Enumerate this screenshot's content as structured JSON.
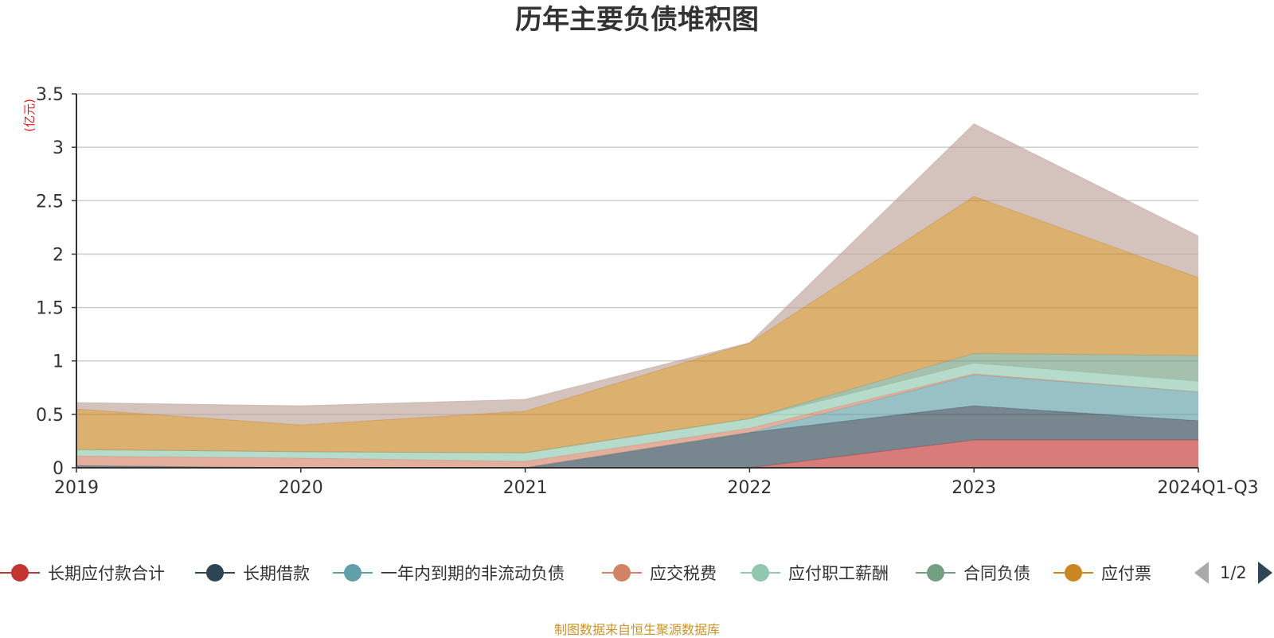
{
  "chart_data": {
    "type": "area",
    "title": "历年主要负债堆积图",
    "ylabel": "(亿元)",
    "xlabel": "",
    "categories": [
      "2019",
      "2020",
      "2021",
      "2022",
      "2023",
      "2024Q1-Q3"
    ],
    "ylim": [
      0,
      3.5
    ],
    "yticks": [
      "0",
      "0.5",
      "1",
      "1.5",
      "2",
      "2.5",
      "3",
      "3.5"
    ],
    "grid": true,
    "stacked": true,
    "series": [
      {
        "name": "长期应付款合计",
        "color": "#c23531",
        "values": [
          0.0,
          0.0,
          0.0,
          0.0,
          0.26,
          0.26
        ]
      },
      {
        "name": "长期借款",
        "color": "#2f4554",
        "values": [
          0.02,
          0.0,
          0.0,
          0.33,
          0.32,
          0.18
        ]
      },
      {
        "name": "一年内到期的非流动负债",
        "color": "#61a0a8",
        "values": [
          0.0,
          0.0,
          0.0,
          0.0,
          0.29,
          0.27
        ]
      },
      {
        "name": "应交税费",
        "color": "#d48265",
        "values": [
          0.09,
          0.09,
          0.06,
          0.04,
          0.01,
          0.0
        ]
      },
      {
        "name": "应付职工薪酬",
        "color": "#91c7ae",
        "values": [
          0.06,
          0.06,
          0.08,
          0.09,
          0.1,
          0.1
        ]
      },
      {
        "name": "合同负债",
        "color": "#749f83",
        "values": [
          0.0,
          0.0,
          0.0,
          0.0,
          0.09,
          0.24
        ]
      },
      {
        "name": "应付票",
        "color": "#ca8622",
        "values": [
          0.38,
          0.25,
          0.39,
          0.71,
          1.47,
          0.73
        ]
      },
      {
        "name": "",
        "color": "#bda29a",
        "values": [
          0.06,
          0.18,
          0.11,
          0.0,
          0.68,
          0.39
        ]
      }
    ]
  },
  "legend": {
    "page": "1/2",
    "items": [
      {
        "label": "长期应付款合计",
        "color": "#c23531"
      },
      {
        "label": "长期借款",
        "color": "#2f4554"
      },
      {
        "label": "一年内到期的非流动负债",
        "color": "#61a0a8"
      },
      {
        "label": "应交税费",
        "color": "#d48265"
      },
      {
        "label": "应付职工薪酬",
        "color": "#91c7ae"
      },
      {
        "label": "合同负债",
        "color": "#749f83"
      },
      {
        "label": "应付票",
        "color": "#ca8622"
      }
    ]
  },
  "source": "制图数据来自恒生聚源数据库"
}
